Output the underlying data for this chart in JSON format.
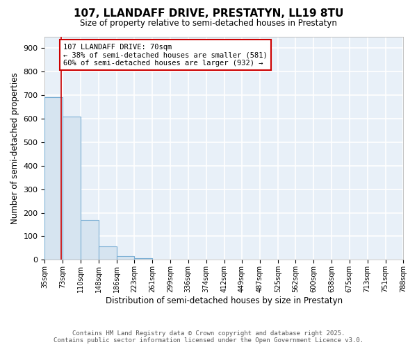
{
  "title_line1": "107, LLANDAFF DRIVE, PRESTATYN, LL19 8TU",
  "title_line2": "Size of property relative to semi-detached houses in Prestatyn",
  "xlabel": "Distribution of semi-detached houses by size in Prestatyn",
  "ylabel": "Number of semi-detached properties",
  "bins": [
    35,
    73,
    110,
    148,
    186,
    223,
    261,
    299,
    336,
    374,
    412,
    449,
    487,
    525,
    562,
    600,
    638,
    675,
    713,
    751,
    788
  ],
  "bar_heights": [
    693,
    610,
    170,
    57,
    16,
    7,
    0,
    0,
    0,
    0,
    0,
    0,
    0,
    0,
    0,
    0,
    0,
    0,
    0,
    0
  ],
  "bar_color": "#d6e4f0",
  "bar_edge_color": "#7bafd4",
  "property_size": 70,
  "property_line_color": "#cc0000",
  "annotation_text": "107 LLANDAFF DRIVE: 70sqm\n← 38% of semi-detached houses are smaller (581)\n60% of semi-detached houses are larger (932) →",
  "annotation_box_color": "white",
  "annotation_box_edge_color": "#cc0000",
  "ylim": [
    0,
    950
  ],
  "yticks": [
    0,
    100,
    200,
    300,
    400,
    500,
    600,
    700,
    800,
    900
  ],
  "tick_labels": [
    "35sqm",
    "73sqm",
    "110sqm",
    "148sqm",
    "186sqm",
    "223sqm",
    "261sqm",
    "299sqm",
    "336sqm",
    "374sqm",
    "412sqm",
    "449sqm",
    "487sqm",
    "525sqm",
    "562sqm",
    "600sqm",
    "638sqm",
    "675sqm",
    "713sqm",
    "751sqm",
    "788sqm"
  ],
  "footer_line1": "Contains HM Land Registry data © Crown copyright and database right 2025.",
  "footer_line2": "Contains public sector information licensed under the Open Government Licence v3.0.",
  "plot_bg_color": "#e8f0f8",
  "grid_color": "white",
  "fig_bg_color": "white"
}
